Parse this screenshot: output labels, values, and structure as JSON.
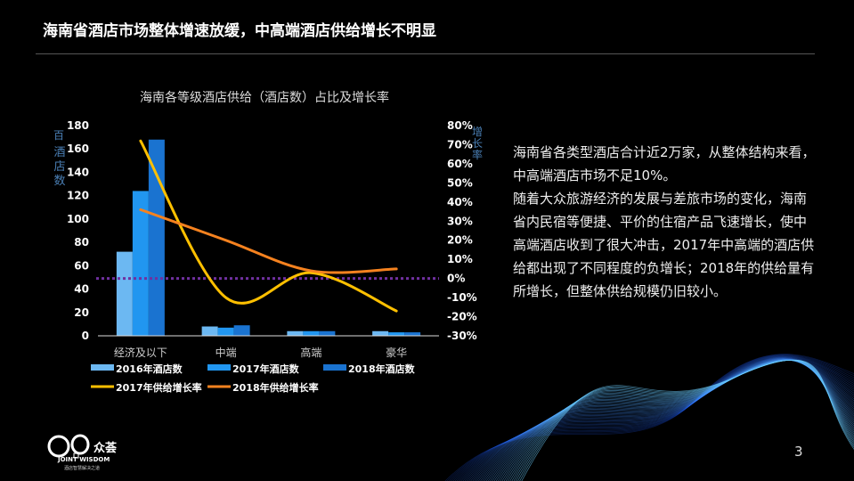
{
  "title": "海南省酒店市场整体增速放缓，中高端酒店供给增长不明显",
  "description": [
    "海南省各类型酒店合计近2万家，从整体结构来看，中高端酒店市场不足10%。",
    "随着大众旅游经济的发展与差旅市场的变化，海南省内民宿等便捷、平价的住宿产品飞速增长，使中高端酒店收到了很大冲击，2017年中高端的酒店供给都出现了不同程度的负增长；2018年的供给量有所增长，但整体供给规模仍旧较小。"
  ],
  "page_number": "3",
  "logo": {
    "brand": "众荟",
    "name": "JOINT WISDOM",
    "tagline": "酒店智慧解决之道"
  },
  "chart_data": {
    "type": "bar+line",
    "title": "海南各等级酒店供给（酒店数）占比及增长率",
    "ylabel_left_unit": "百",
    "ylabel_left": "酒店数",
    "ylabel_right": "增长率",
    "categories": [
      "经济及以下",
      "中端",
      "高端",
      "豪华"
    ],
    "ylim_left": [
      0,
      180
    ],
    "yticks_left": [
      "0",
      "20",
      "40",
      "60",
      "80",
      "100",
      "120",
      "140",
      "160",
      "180"
    ],
    "ylim_right": [
      -30,
      80
    ],
    "yticks_right": [
      "-30%",
      "-20%",
      "-10%",
      "0%",
      "10%",
      "20%",
      "30%",
      "40%",
      "50%",
      "60%",
      "70%",
      "80%"
    ],
    "bar_series": [
      {
        "name": "2016年酒店数",
        "values": [
          72,
          8,
          4,
          4
        ],
        "color": "#6cb8f2"
      },
      {
        "name": "2017年酒店数",
        "values": [
          124,
          7,
          4,
          3
        ],
        "color": "#2196f0"
      },
      {
        "name": "2018年酒店数",
        "values": [
          168,
          9,
          4,
          3
        ],
        "color": "#1a73d0"
      }
    ],
    "line_series": [
      {
        "name": "2017年供给增长率",
        "values": [
          72,
          -10,
          3,
          -17
        ],
        "color": "#ffc000"
      },
      {
        "name": "2018年供给增长率",
        "values": [
          36,
          20,
          4,
          5
        ],
        "color": "#f5821f"
      }
    ],
    "reference_line": {
      "value": 0,
      "color": "#7030a0"
    }
  }
}
